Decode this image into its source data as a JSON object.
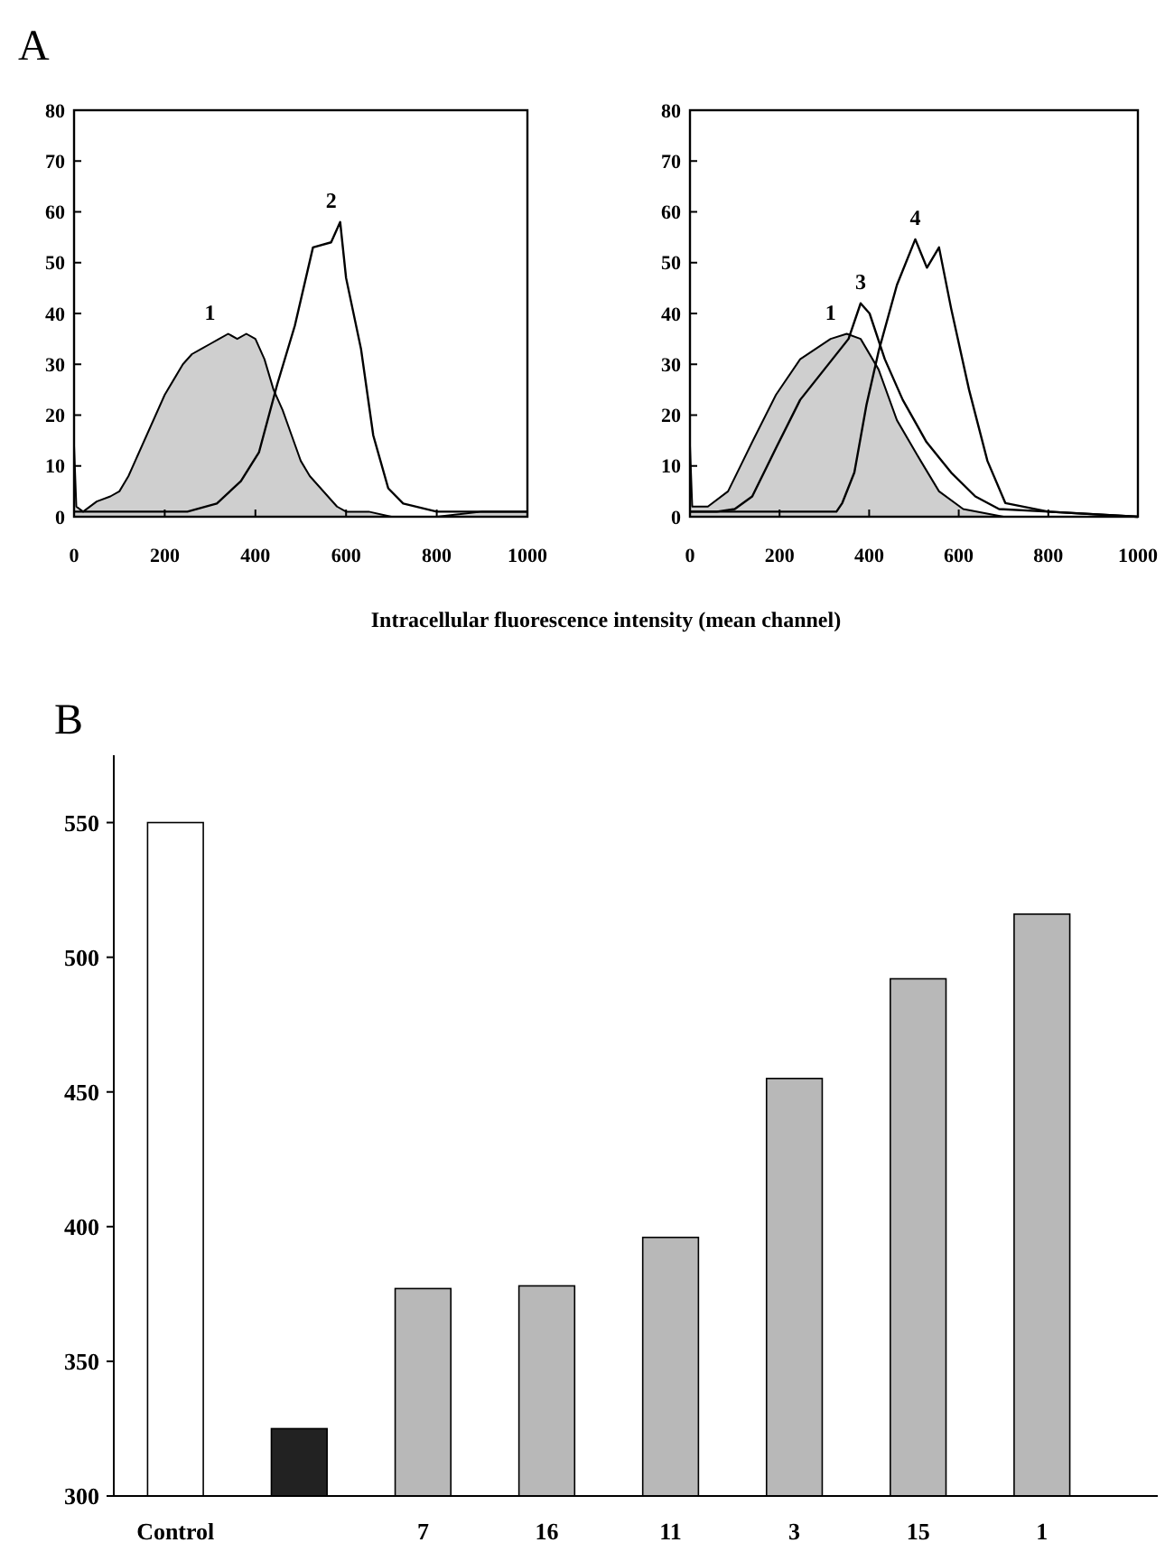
{
  "chart_data": [
    {
      "type": "line",
      "annotations": [
        "A"
      ],
      "xlabel": "Intracellular fluorescence intensity (mean channel)",
      "xlim": [
        0,
        1000
      ],
      "ylim": [
        0,
        80
      ],
      "xticks": [
        0,
        200,
        400,
        600,
        800,
        1000
      ],
      "yticks": [
        0,
        10,
        20,
        30,
        40,
        50,
        60,
        70,
        80
      ],
      "series": [
        {
          "name": "1",
          "type": "area",
          "color": "#cfcfcf",
          "x": [
            0,
            5,
            20,
            50,
            80,
            100,
            120,
            140,
            160,
            180,
            200,
            220,
            240,
            260,
            280,
            300,
            320,
            340,
            360,
            380,
            400,
            420,
            440,
            460,
            480,
            500,
            520,
            540,
            560,
            580,
            600,
            650,
            700,
            800,
            900,
            1000
          ],
          "values": [
            14,
            2,
            1,
            3,
            4,
            5,
            8,
            12,
            16,
            20,
            24,
            27,
            30,
            32,
            33,
            34,
            35,
            36,
            35,
            36,
            35,
            31,
            25,
            21,
            16,
            11,
            8,
            6,
            4,
            2,
            1,
            1,
            0,
            0,
            1,
            1
          ]
        },
        {
          "name": "2",
          "type": "line",
          "color": "#000000",
          "x": [
            0,
            100,
            200,
            250,
            315,
            368,
            408,
            448,
            487,
            527,
            567,
            587,
            600,
            633,
            660,
            693,
            726,
            800,
            900,
            1000
          ],
          "values": [
            1,
            1,
            1,
            1,
            2.6,
            7,
            12.7,
            26,
            37.6,
            53,
            54,
            58,
            47,
            33,
            16,
            5.6,
            2.6,
            1,
            1,
            1
          ]
        }
      ]
    },
    {
      "type": "line",
      "xlim": [
        0,
        1000
      ],
      "ylim": [
        0,
        80
      ],
      "xticks": [
        0,
        200,
        400,
        600,
        800,
        1000
      ],
      "yticks": [
        0,
        10,
        20,
        30,
        40,
        50,
        60,
        70,
        80
      ],
      "series": [
        {
          "name": "1",
          "type": "area",
          "color": "#cfcfcf",
          "x": [
            0,
            5,
            40,
            85,
            139,
            192,
            246,
            314,
            350,
            381,
            421,
            462,
            515,
            556,
            610,
            700,
            800,
            1000
          ],
          "values": [
            14,
            2,
            2,
            5,
            14.7,
            24,
            31,
            35,
            36,
            35,
            29,
            19,
            11,
            5,
            1.5,
            0,
            0,
            0
          ]
        },
        {
          "name": "3",
          "type": "line",
          "color": "#000000",
          "x": [
            0,
            60,
            100,
            139,
            192,
            246,
            300,
            354,
            381,
            401,
            435,
            475,
            528,
            583,
            637,
            690,
            800,
            1000
          ],
          "values": [
            1,
            1,
            1.5,
            4,
            13.5,
            23,
            29,
            35,
            42,
            40,
            31,
            23,
            14.7,
            8.7,
            4,
            1.5,
            1,
            0
          ]
        },
        {
          "name": "4",
          "type": "line",
          "color": "#000000",
          "x": [
            0,
            100,
            200,
            327,
            340,
            367,
            394,
            421,
            462,
            503,
            529,
            556,
            583,
            623,
            664,
            704,
            800,
            1000
          ],
          "values": [
            1,
            1,
            1,
            1,
            2.7,
            8.7,
            22,
            32.5,
            45.6,
            54.6,
            49,
            53,
            41,
            25,
            11,
            2.7,
            1,
            0
          ]
        }
      ]
    },
    {
      "type": "bar",
      "annotations": [
        "B"
      ],
      "categories": [
        "Control",
        null,
        "7",
        "16",
        "11",
        "3",
        "15",
        "1"
      ],
      "values": [
        550,
        325,
        377,
        378,
        396,
        455,
        492,
        516
      ],
      "colors": [
        "#ffffff",
        "#222222",
        "#b8b8b8",
        "#b8b8b8",
        "#b8b8b8",
        "#b8b8b8",
        "#b8b8b8",
        "#b8b8b8"
      ],
      "ylim": [
        300,
        575
      ],
      "yticks": [
        300,
        350,
        400,
        450,
        500,
        550
      ]
    }
  ]
}
